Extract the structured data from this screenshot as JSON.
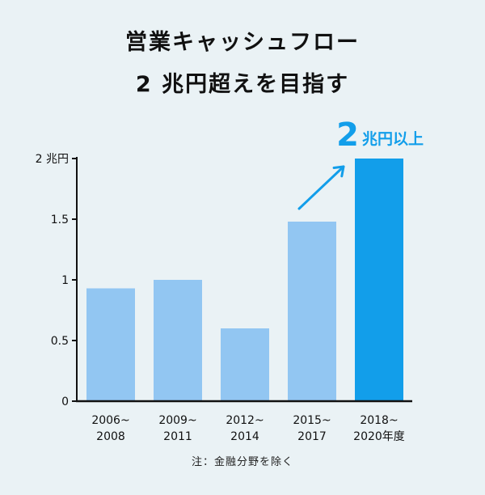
{
  "title": {
    "line1": "営業キャッシュフロー",
    "line2": "2 兆円超えを目指す"
  },
  "note": "注：金融分野を除く",
  "colors": {
    "bar_light": "#92c6f2",
    "bar_highlight": "#129eea",
    "accent": "#129eea",
    "axis": "#111111",
    "background": "#eaf2f5"
  },
  "chart_data": {
    "type": "bar",
    "categories": [
      [
        "2006~",
        "2008"
      ],
      [
        "2009~",
        "2011"
      ],
      [
        "2012~",
        "2014"
      ],
      [
        "2015~",
        "2017"
      ],
      [
        "2018~",
        "2020年度"
      ]
    ],
    "values": [
      0.93,
      1.0,
      0.6,
      1.48,
      2.0
    ],
    "highlight_index": 4,
    "ylim": [
      0,
      2
    ],
    "yticks": [
      {
        "value": 0,
        "label": "0"
      },
      {
        "value": 0.5,
        "label": "0.5"
      },
      {
        "value": 1,
        "label": "1"
      },
      {
        "value": 1.5,
        "label": "1.5"
      },
      {
        "value": 2,
        "label": "2 兆円"
      }
    ],
    "annotation": {
      "number": "2",
      "text": "兆円以上",
      "arrow_from_index": 3,
      "arrow_to_index": 4
    }
  }
}
